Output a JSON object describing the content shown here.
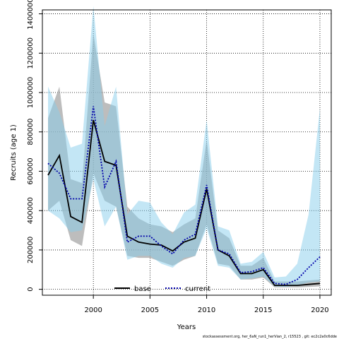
{
  "chart_data": {
    "type": "area",
    "xlabel": "Years",
    "ylabel": "Recruits (age 1)",
    "xlim": [
      1995.5,
      2021
    ],
    "ylim": [
      -30000,
      1420000
    ],
    "x_ticks": [
      2000,
      2005,
      2010,
      2015,
      2020
    ],
    "x_tick_labels": [
      "2000",
      "2005",
      "2010",
      "2015",
      "2020"
    ],
    "y_ticks": [
      0,
      200000,
      400000,
      600000,
      800000,
      1000000,
      1200000,
      1400000
    ],
    "y_tick_labels": [
      "0",
      "200000",
      "400000",
      "600000",
      "800000",
      "1000000",
      "1200000",
      "1400000"
    ],
    "grid": true,
    "legend_position": "bottom-center",
    "x": [
      1996,
      1997,
      1998,
      1999,
      2000,
      2001,
      2002,
      2003,
      2004,
      2005,
      2006,
      2007,
      2008,
      2009,
      2010,
      2011,
      2012,
      2013,
      2014,
      2015,
      2016,
      2017,
      2018,
      2019,
      2020
    ],
    "series": [
      {
        "name": "base",
        "line_style": "solid",
        "line_color": "#000000",
        "band_color": "#999999",
        "values": [
          580000,
          680000,
          370000,
          340000,
          860000,
          650000,
          630000,
          270000,
          240000,
          230000,
          225000,
          195000,
          240000,
          260000,
          510000,
          200000,
          170000,
          80000,
          80000,
          100000,
          20000,
          20000,
          20000,
          25000,
          30000
        ],
        "lower": [
          400000,
          450000,
          250000,
          220000,
          590000,
          450000,
          420000,
          170000,
          160000,
          160000,
          140000,
          120000,
          150000,
          170000,
          330000,
          130000,
          120000,
          50000,
          50000,
          60000,
          10000,
          10000,
          10000,
          12000,
          15000
        ],
        "upper": [
          870000,
          1030000,
          560000,
          540000,
          1300000,
          950000,
          930000,
          420000,
          360000,
          330000,
          320000,
          290000,
          330000,
          360000,
          760000,
          300000,
          260000,
          120000,
          120000,
          160000,
          40000,
          40000,
          40000,
          45000,
          50000
        ]
      },
      {
        "name": "current",
        "line_style": "dotted",
        "line_color": "#0000aa",
        "band_color": "#87ceeb",
        "values": [
          640000,
          590000,
          460000,
          460000,
          930000,
          520000,
          650000,
          240000,
          270000,
          270000,
          220000,
          180000,
          250000,
          280000,
          530000,
          200000,
          180000,
          85000,
          90000,
          110000,
          30000,
          25000,
          50000,
          110000,
          165000
        ],
        "lower": [
          400000,
          360000,
          290000,
          300000,
          560000,
          320000,
          420000,
          150000,
          170000,
          170000,
          130000,
          110000,
          160000,
          170000,
          310000,
          120000,
          110000,
          50000,
          55000,
          65000,
          15000,
          12000,
          20000,
          35000,
          40000
        ],
        "upper": [
          1030000,
          900000,
          720000,
          740000,
          1440000,
          830000,
          1030000,
          380000,
          450000,
          440000,
          340000,
          280000,
          390000,
          430000,
          860000,
          320000,
          300000,
          130000,
          140000,
          190000,
          60000,
          65000,
          130000,
          380000,
          920000
        ]
      }
    ]
  },
  "footer": {
    "credit": "stockassessment.org,  her_6aN_run1_herVian_2,  r15523 ,  git: ec2c2a0c6dde"
  }
}
